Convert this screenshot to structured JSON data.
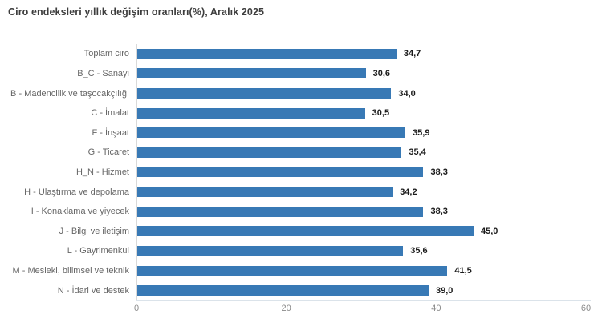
{
  "title": "Ciro endeksleri yıllık değişim oranları(%), Aralık 2025",
  "chart_data": {
    "type": "bar",
    "orientation": "horizontal",
    "title": "Ciro endeksleri yıllık değişim oranları(%), Aralık 2025",
    "categories": [
      "Toplam ciro",
      "B_C - Sanayi",
      "B - Madencilik ve taşocakçılığı",
      "C - İmalat",
      "F - İnşaat",
      "G - Ticaret",
      "H_N - Hizmet",
      "H - Ulaştırma ve depolama",
      "I - Konaklama ve yiyecek",
      "J - Bilgi ve iletişim",
      "L - Gayrimenkul",
      "M - Mesleki, bilimsel ve teknik",
      "N - İdari ve destek"
    ],
    "values": [
      34.7,
      30.6,
      34.0,
      30.5,
      35.9,
      35.4,
      38.3,
      34.2,
      38.3,
      45.0,
      35.6,
      41.5,
      39.0
    ],
    "value_labels": [
      "34,7",
      "30,6",
      "34,0",
      "30,5",
      "35,9",
      "35,4",
      "38,3",
      "34,2",
      "38,3",
      "45,0",
      "35,6",
      "41,5",
      "39,0"
    ],
    "xlabel": "",
    "ylabel": "",
    "xlim": [
      0,
      60
    ],
    "x_ticks": [
      0,
      20,
      40,
      60
    ],
    "x_tick_labels": [
      "0",
      "20",
      "40",
      "60"
    ],
    "grid": false,
    "legend": "none",
    "bar_color": "#3879b5",
    "axis_line_color": "#d9d9d9",
    "value_label_color": "#1a1a1a",
    "category_label_color": "#666666"
  }
}
